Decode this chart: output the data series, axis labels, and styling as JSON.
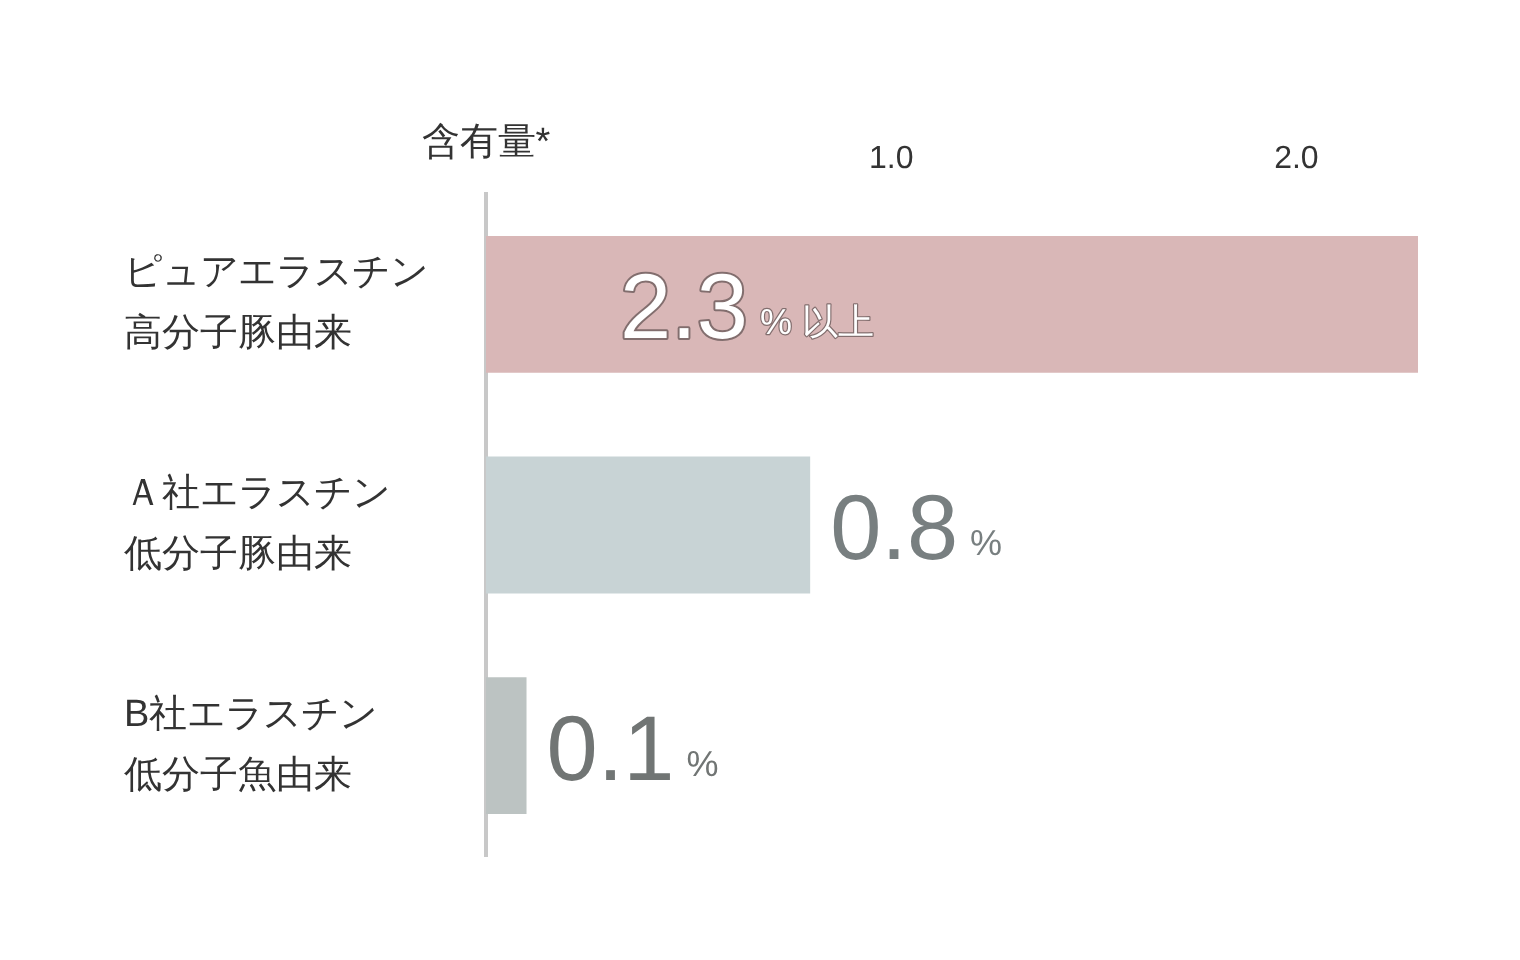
{
  "chart_data": {
    "type": "bar",
    "orientation": "horizontal",
    "xlabel": "含有量*",
    "categories": [
      "ピュアエラスチン高分子豚由来",
      "Ａ社エラスチン低分子豚由来",
      "B社エラスチン低分子魚由来"
    ],
    "values": [
      2.3,
      0.8,
      0.1
    ],
    "colors": [
      "#d9b7b7",
      "#c8d3d5",
      "#bcc3c2"
    ],
    "value_labels": [
      "2.3% 以上",
      "0.8%",
      "0.1%"
    ],
    "xlim": [
      0,
      2.3
    ],
    "xticks": [
      {
        "value": 1,
        "label": "1.0"
      },
      {
        "value": 2,
        "label": "2.0"
      }
    ]
  }
}
